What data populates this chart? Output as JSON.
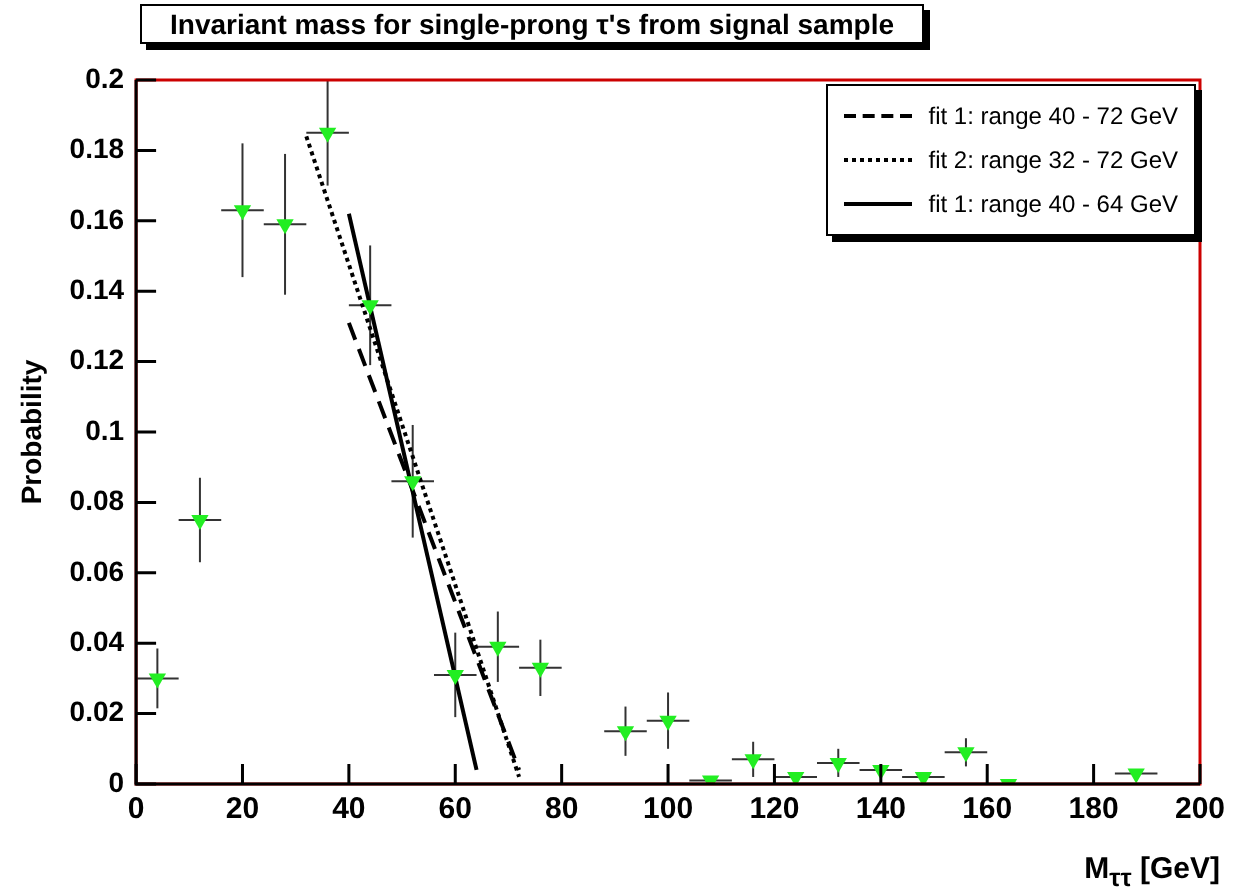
{
  "chart_data": {
    "type": "scatter",
    "title": "Invariant mass for single-prong τ's from signal sample",
    "xlabel": "M$_{ττ}$ [GeV]",
    "ylabel": "Probability",
    "xlim": [
      0,
      200
    ],
    "xticks": [
      0,
      20,
      40,
      60,
      80,
      100,
      120,
      140,
      160,
      180,
      200
    ],
    "ylim": [
      0,
      0.2
    ],
    "yticks": [
      0,
      0.02,
      0.04,
      0.06,
      0.08,
      0.1,
      0.12,
      0.14,
      0.16,
      0.18,
      0.2
    ],
    "grid": false,
    "legend": "top right",
    "marker": "triangle",
    "series": [
      {
        "color": "#22ee22",
        "x": [
          4,
          12,
          20,
          28,
          36,
          44,
          52,
          60,
          68,
          76,
          92,
          100,
          108,
          116,
          124,
          132,
          140,
          148,
          156,
          164,
          188
        ],
        "values": [
          0.03,
          0.075,
          0.163,
          0.159,
          0.185,
          0.136,
          0.086,
          0.031,
          0.039,
          0.033,
          0.015,
          0.018,
          0.001,
          0.007,
          0.002,
          0.006,
          0.004,
          0.002,
          0.009,
          0.0,
          0.003
        ],
        "errors": [
          0.0085,
          0.012,
          0.019,
          0.02,
          0.015,
          0.017,
          0.016,
          0.012,
          0.01,
          0.008,
          0.007,
          0.008,
          null,
          0.005,
          null,
          0.004,
          null,
          null,
          0.004,
          null,
          null
        ],
        "xerrors": [
          4,
          4,
          4,
          4,
          4,
          4,
          4,
          4,
          4,
          4,
          4,
          4,
          4,
          4,
          4,
          4,
          4,
          4,
          4,
          4,
          4
        ]
      },
      {
        "type": "line",
        "name": "fit 1: range 40 - 72 GeV",
        "color": "#000000",
        "line_style": "dashed",
        "marker": "none",
        "x": [
          40,
          72
        ],
        "values": [
          0.131,
          0.004
        ]
      },
      {
        "type": "line",
        "name": "fit 2: range 32 - 72 GeV",
        "color": "#000000",
        "line_style": "dotted",
        "marker": "none",
        "x": [
          32,
          72
        ],
        "values": [
          0.184,
          0.002
        ]
      },
      {
        "type": "line",
        "name": "fit 1: range 40 - 64 GeV",
        "color": "#000000",
        "line_style": "solid",
        "marker": "none",
        "x": [
          40,
          64
        ],
        "values": [
          0.162,
          0.004
        ]
      }
    ]
  }
}
